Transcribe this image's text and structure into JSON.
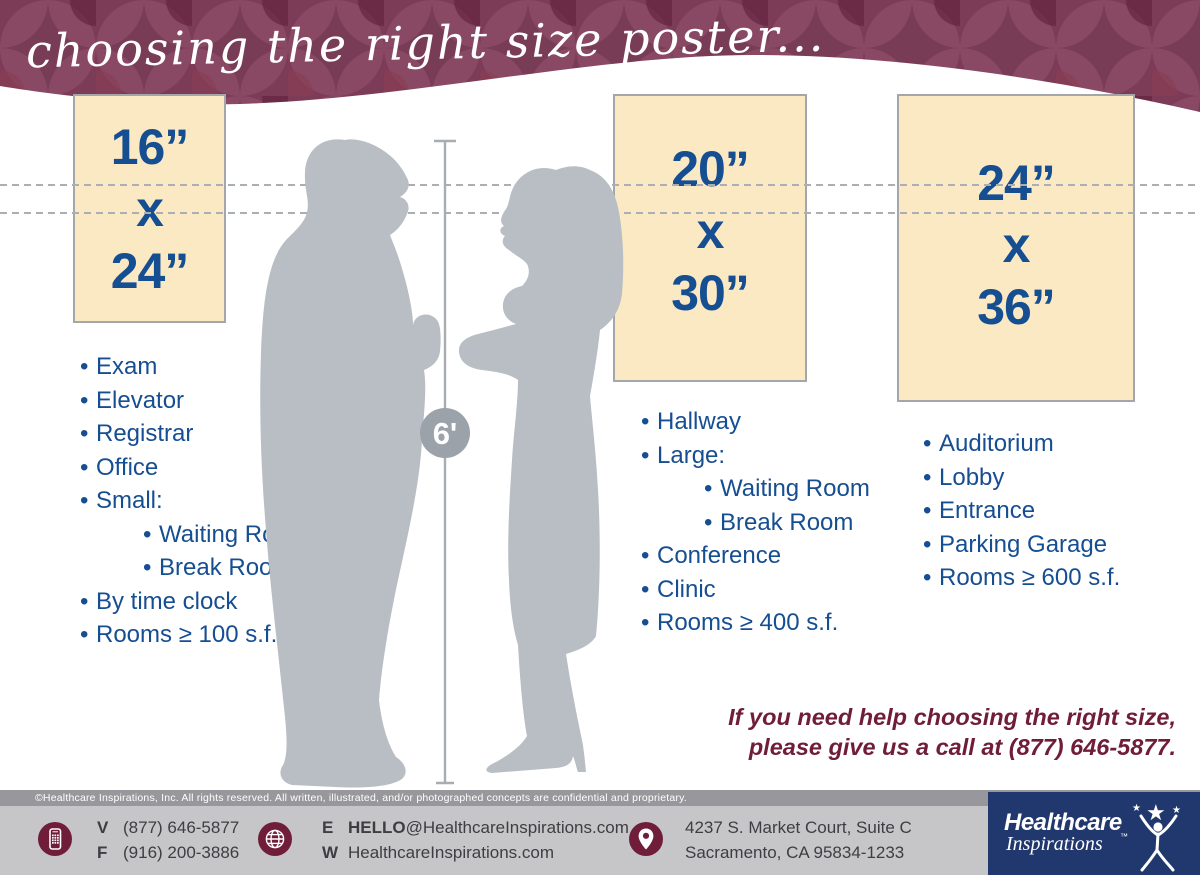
{
  "title": "choosing the right size poster...",
  "measure_label": "6'",
  "posters": [
    {
      "size": [
        "16”",
        "x",
        "24”"
      ],
      "items": [
        {
          "t": "Exam",
          "sub": false
        },
        {
          "t": "Elevator",
          "sub": false
        },
        {
          "t": "Registrar",
          "sub": false
        },
        {
          "t": "Office",
          "sub": false
        },
        {
          "t": "Small:",
          "sub": false
        },
        {
          "t": "Waiting Room",
          "sub": true
        },
        {
          "t": "Break Room",
          "sub": true
        },
        {
          "t": "By time clock",
          "sub": false
        },
        {
          "t": "Rooms ≥ 100 s.f.",
          "sub": false
        }
      ]
    },
    {
      "size": [
        "20”",
        "x",
        "30”"
      ],
      "items": [
        {
          "t": "Hallway",
          "sub": false
        },
        {
          "t": "Large:",
          "sub": false
        },
        {
          "t": "Waiting Room",
          "sub": true
        },
        {
          "t": "Break Room",
          "sub": true
        },
        {
          "t": "Conference",
          "sub": false
        },
        {
          "t": "Clinic",
          "sub": false
        },
        {
          "t": "Rooms ≥ 400 s.f.",
          "sub": false
        }
      ]
    },
    {
      "size": [
        "24”",
        "x",
        "36”"
      ],
      "items": [
        {
          "t": "Auditorium",
          "sub": false
        },
        {
          "t": "Lobby",
          "sub": false
        },
        {
          "t": "Entrance",
          "sub": false
        },
        {
          "t": "Parking Garage",
          "sub": false
        },
        {
          "t": "Rooms ≥ 600 s.f.",
          "sub": false
        }
      ]
    }
  ],
  "cta": {
    "line1": "If you need help choosing the right size,",
    "line2": "please give us a call at (877) 646-5877."
  },
  "footer": {
    "copyright": "©Healthcare Inspirations, Inc.  All rights reserved. All written, illustrated, and/or photographed concepts are confidential and proprietary.",
    "phone_v_label": "V",
    "phone_v": "(877) 646-5877",
    "phone_f_label": "F",
    "phone_f": "(916) 200-3886",
    "email_label": "E",
    "email_bold": "HELLO",
    "email_rest": "@HealthcareInspirations.com",
    "web_label": "W",
    "web": "HealthcareInspirations.com",
    "address1": "4237 S. Market Court, Suite C",
    "address2": "Sacramento, CA 95834-1233",
    "logo_line1": "Healthcare",
    "logo_line2": "Inspirations",
    "logo_tm": "™"
  },
  "colors": {
    "blue": "#164E92",
    "maroon": "#6F1D39",
    "cream": "#FBE9C4",
    "navy": "#21386E",
    "silhouette": "#B9BEC4",
    "bar_gray": "#C6C6C8"
  }
}
